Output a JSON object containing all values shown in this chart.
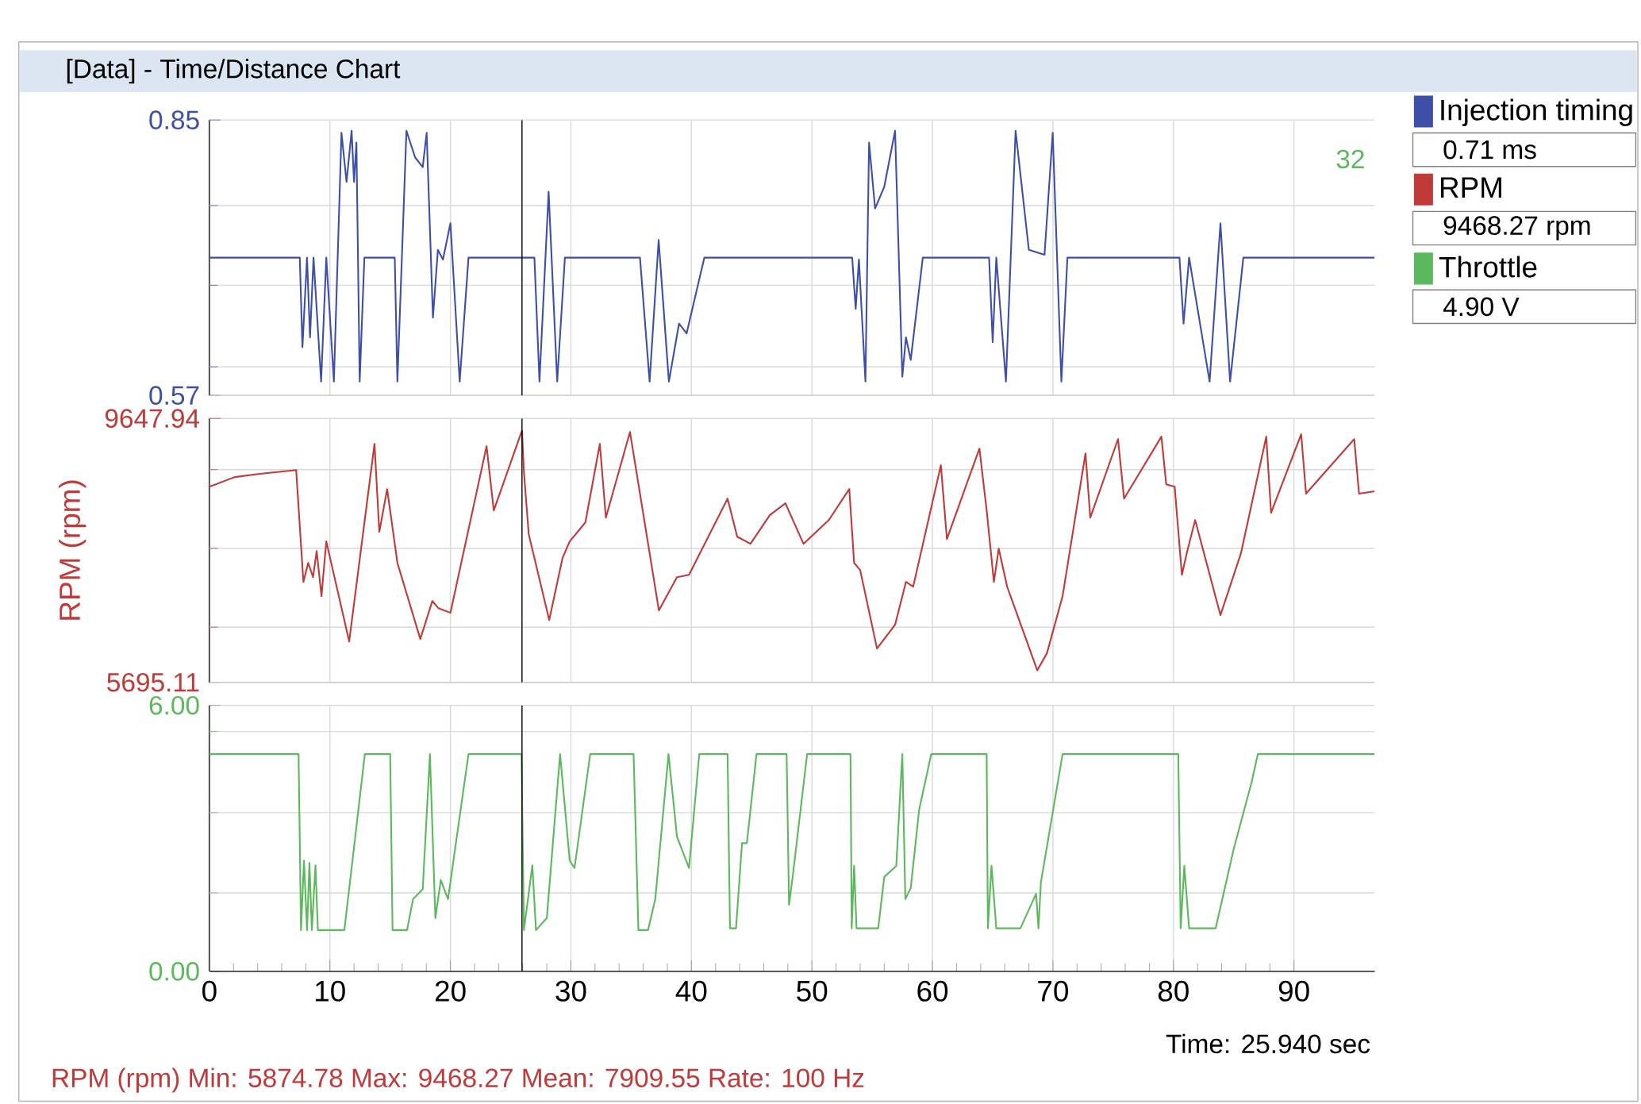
{
  "chart_data": [
    {
      "type": "line",
      "title": "[Data] - Time/Distance Chart",
      "xlim": [
        0,
        96.7
      ],
      "ylim": [
        0.57,
        0.85
      ],
      "xticks": [
        0,
        10,
        20,
        30,
        40,
        50,
        60,
        70,
        80,
        90
      ],
      "yticks": [
        0.57,
        {
          "value": 0.599,
          "label": null
        },
        {
          "value": 0.682,
          "label": null
        },
        {
          "value": 0.763,
          "label": null
        },
        0.85
      ],
      "grid": true,
      "tick_labels": "y",
      "legend": "right",
      "annotations": [
        "0.71 ms"
      ],
      "ref_lines": [
        {
          "axis": "x",
          "value": 25.94,
          "color": "#000000"
        }
      ],
      "series": [
        {
          "name": "Injection timing",
          "color": "#3f4fa8",
          "x": [
            0,
            7.5,
            7.72,
            8.1,
            8.35,
            8.64,
            9.27,
            9.7,
            10.33,
            10.96,
            11.38,
            11.8,
            12.0,
            12.2,
            12.47,
            12.86,
            15.38,
            15.6,
            16.35,
            17.07,
            17.7,
            18.03,
            18.55,
            18.96,
            19.38,
            20.0,
            20.77,
            21.5,
            26.97,
            27.39,
            28.15,
            28.86,
            29.5,
            35.73,
            36.53,
            37.28,
            38.13,
            38.97,
            39.6,
            41.07,
            53.34,
            53.63,
            53.9,
            54.44,
            54.74,
            55.24,
            56.0,
            56.9,
            57.5,
            57.8,
            58.2,
            59.2,
            64.7,
            65.0,
            65.3,
            66.1,
            66.9,
            68.0,
            69.3,
            69.98,
            70.7,
            71.2,
            80.5,
            80.84,
            81.3,
            83.0,
            83.9,
            84.7,
            85.8,
            96.7
          ],
          "values": [
            0.71,
            0.71,
            0.619,
            0.71,
            0.629,
            0.71,
            0.584,
            0.71,
            0.584,
            0.837,
            0.787,
            0.839,
            0.787,
            0.827,
            0.584,
            0.71,
            0.71,
            0.584,
            0.839,
            0.812,
            0.802,
            0.837,
            0.649,
            0.718,
            0.708,
            0.745,
            0.584,
            0.71,
            0.71,
            0.584,
            0.777,
            0.584,
            0.71,
            0.71,
            0.584,
            0.728,
            0.584,
            0.643,
            0.633,
            0.71,
            0.71,
            0.658,
            0.708,
            0.584,
            0.827,
            0.76,
            0.782,
            0.839,
            0.589,
            0.629,
            0.606,
            0.71,
            0.71,
            0.624,
            0.71,
            0.584,
            0.839,
            0.718,
            0.713,
            0.837,
            0.584,
            0.71,
            0.71,
            0.643,
            0.71,
            0.584,
            0.745,
            0.584,
            0.71,
            0.71
          ]
        }
      ]
    },
    {
      "type": "line",
      "ylabel": "RPM (rpm)",
      "xlim": [
        0,
        96.7
      ],
      "ylim": [
        5695.11,
        9647.94
      ],
      "xticks": [
        0,
        10,
        20,
        30,
        40,
        50,
        60,
        70,
        80,
        90
      ],
      "yticks": [
        5695.11,
        {
          "value": 6521,
          "label": null
        },
        {
          "value": 7701,
          "label": null
        },
        {
          "value": 8881,
          "label": null
        },
        9647.94
      ],
      "grid": true,
      "tick_labels": "y",
      "legend": "right",
      "annotations": [
        "9468.27 rpm",
        "RPM (rpm) Min: 5874.78 Max: 9468.27 Mean: 7909.55 Rate: 100 Hz"
      ],
      "ref_lines": [
        {
          "axis": "x",
          "value": 25.94,
          "color": "#000000"
        }
      ],
      "series": [
        {
          "name": "RPM",
          "color": "#c03a3a",
          "x": [
            0,
            2.1,
            4.2,
            7.2,
            7.8,
            8.2,
            8.6,
            8.9,
            9.3,
            9.7,
            11.6,
            13.7,
            14.1,
            14.75,
            15.6,
            17.5,
            18.5,
            19.0,
            20.0,
            23.0,
            23.6,
            25.94,
            26.1,
            26.5,
            28.2,
            29.3,
            29.9,
            31.2,
            32.4,
            32.9,
            34.9,
            37.3,
            38.8,
            39.8,
            43.0,
            43.8,
            44.9,
            46.5,
            47.8,
            49.3,
            51.4,
            53.1,
            53.5,
            54.0,
            55.4,
            56.9,
            57.8,
            58.4,
            60.7,
            61.2,
            63.9,
            64.5,
            65.1,
            65.5,
            66.2,
            68.7,
            69.5,
            70.8,
            72.7,
            73.1,
            75.4,
            75.9,
            79.0,
            79.4,
            80.1,
            80.7,
            81.1,
            81.8,
            83.9,
            85.6,
            87.7,
            88.1,
            90.6,
            91.0,
            95.0,
            95.4,
            96.7
          ],
          "values": [
            8626,
            8769,
            8818,
            8875,
            7199,
            7484,
            7270,
            7662,
            6985,
            7806,
            6307,
            9267,
            7949,
            8590,
            7484,
            6344,
            6913,
            6807,
            6736,
            9232,
            8269,
            9468,
            8840,
            7912,
            6628,
            7556,
            7806,
            8090,
            9267,
            8162,
            9446,
            6772,
            7270,
            7305,
            8447,
            7876,
            7770,
            8198,
            8376,
            7770,
            8126,
            8590,
            7484,
            7378,
            6201,
            6557,
            7199,
            7128,
            8947,
            7841,
            9196,
            8269,
            7199,
            7698,
            7127,
            5875,
            6130,
            6985,
            9124,
            8162,
            9338,
            8447,
            9375,
            8661,
            8626,
            7305,
            7627,
            8126,
            6701,
            7627,
            9375,
            8233,
            9410,
            8521,
            9338,
            8521,
            8557
          ]
        }
      ]
    },
    {
      "type": "line",
      "xlim": [
        0,
        96.7
      ],
      "ylim": [
        0,
        6
      ],
      "xticks": [
        0,
        10,
        20,
        30,
        40,
        50,
        60,
        70,
        80,
        90
      ],
      "yticks": [
        {
          "value": 0,
          "label": "0.00"
        },
        {
          "value": 1.77,
          "label": null
        },
        {
          "value": 3.58,
          "label": null
        },
        {
          "value": 5.41,
          "label": null
        },
        {
          "value": 6,
          "label": "6.00"
        }
      ],
      "grid": true,
      "legend": "right",
      "annotations": [
        "4.90 V",
        "Time: 25.940 sec",
        "32"
      ],
      "ref_lines": [
        {
          "axis": "x",
          "value": 25.94,
          "color": "#000000"
        }
      ],
      "series": [
        {
          "name": "Throttle",
          "color": "#5cb85c",
          "x": [
            0,
            7.4,
            7.6,
            7.85,
            8.1,
            8.3,
            8.5,
            8.8,
            9.0,
            11.2,
            12.9,
            15.0,
            15.2,
            16.4,
            16.9,
            17.7,
            18.3,
            18.75,
            19.2,
            19.8,
            21.5,
            25.9,
            26.1,
            26.8,
            27.1,
            28.0,
            29.1,
            29.9,
            30.3,
            31.6,
            35.2,
            35.6,
            36.4,
            37.0,
            38.1,
            38.8,
            39.8,
            40.65,
            43.0,
            43.2,
            43.7,
            44.2,
            44.6,
            45.4,
            47.9,
            48.1,
            48.4,
            49.6,
            53.2,
            53.3,
            53.5,
            53.7,
            55.5,
            56.0,
            57.0,
            57.5,
            57.75,
            58.2,
            58.9,
            59.9,
            64.5,
            64.6,
            64.9,
            65.3,
            67.3,
            68.6,
            68.8,
            69.0,
            70.8,
            80.4,
            80.6,
            80.9,
            81.3,
            83.5,
            85.0,
            86.5,
            87.0,
            96.7
          ],
          "values": [
            4.9,
            4.9,
            0.93,
            2.5,
            0.93,
            2.45,
            0.93,
            2.39,
            0.93,
            0.93,
            4.9,
            4.9,
            0.93,
            0.93,
            1.63,
            1.85,
            4.9,
            1.2,
            2.06,
            1.63,
            4.9,
            4.9,
            0.93,
            2.39,
            0.93,
            1.2,
            4.9,
            2.5,
            2.33,
            4.9,
            4.9,
            0.93,
            0.93,
            1.63,
            4.9,
            3.04,
            2.33,
            4.9,
            4.9,
            0.97,
            0.97,
            2.89,
            2.89,
            4.9,
            4.9,
            1.5,
            2.13,
            4.9,
            4.9,
            0.97,
            2.38,
            0.97,
            0.97,
            2.13,
            2.38,
            4.9,
            1.63,
            1.88,
            3.65,
            4.9,
            4.9,
            0.97,
            2.38,
            0.97,
            0.97,
            1.75,
            0.97,
            2.01,
            4.9,
            4.9,
            0.97,
            2.38,
            0.97,
            0.97,
            2.76,
            4.28,
            4.9,
            4.9
          ]
        }
      ]
    }
  ]
}
